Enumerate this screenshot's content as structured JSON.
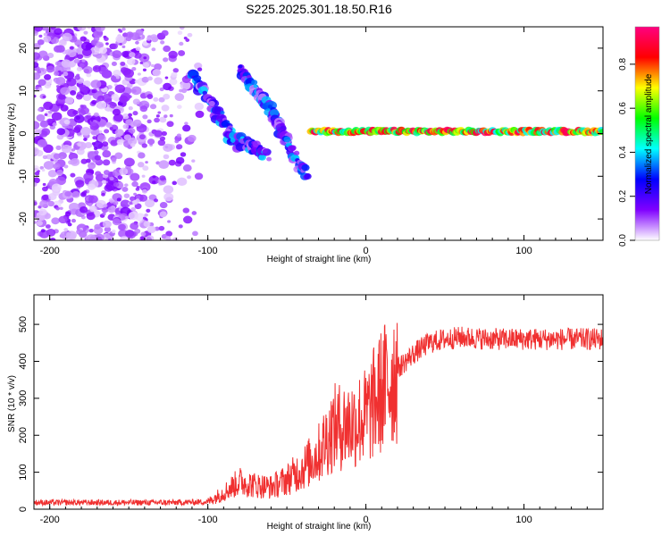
{
  "title": "S225.2025.301.18.50.R16",
  "chart_data": [
    {
      "type": "heatmap",
      "name": "spectrogram",
      "xlabel": "Height of straight line (km)",
      "ylabel": "Frequency (Hz)",
      "xlim": [
        -210,
        150
      ],
      "ylim": [
        -25,
        25
      ],
      "x_ticks": [
        -200,
        -100,
        0,
        100
      ],
      "y_ticks": [
        -20,
        -10,
        0,
        10,
        20
      ],
      "colorbar": {
        "label": "Normalized spectral amplitude",
        "range": [
          0,
          0.97
        ],
        "ticks": [
          0.0,
          0.2,
          0.4,
          0.6,
          0.8
        ],
        "colormap": [
          "#ffffff",
          "#8000ff",
          "#0000ff",
          "#00ffff",
          "#00ff00",
          "#ffff00",
          "#ff0000",
          "#ff0080"
        ]
      },
      "features": [
        {
          "region": "noise",
          "x_range": [
            -210,
            -100
          ],
          "freq_range": [
            -25,
            25
          ],
          "amplitude_range": [
            0.02,
            0.15
          ]
        },
        {
          "region": "streak_1",
          "x_start": -110,
          "x_end": -80,
          "freq_start": 14,
          "freq_end": -3
        },
        {
          "region": "streak_2",
          "x_start": -88,
          "x_end": -62,
          "freq_start": 0,
          "freq_end": -5
        },
        {
          "region": "streak_3",
          "x_start": -80,
          "x_end": -55,
          "freq_start": 15,
          "freq_end": 3
        },
        {
          "region": "streak_4",
          "x_start": -58,
          "x_end": -38,
          "freq_start": 4,
          "freq_end": -10
        },
        {
          "region": "carrier_line",
          "x_start": -35,
          "x_end": 150,
          "frequency": 0.5,
          "amplitude_range": [
            0.4,
            0.95
          ]
        }
      ]
    },
    {
      "type": "line",
      "name": "snr",
      "xlabel": "Height of straight line (km)",
      "ylabel": "SNR (10 * v/v)",
      "xlim": [
        -210,
        150
      ],
      "ylim": [
        0,
        580
      ],
      "x_ticks": [
        -200,
        -100,
        0,
        100
      ],
      "y_ticks": [
        0,
        100,
        200,
        300,
        400,
        500
      ],
      "color": "#f03030",
      "series": [
        {
          "name": "SNR",
          "x": [
            -210,
            -180,
            -150,
            -120,
            -100,
            -90,
            -80,
            -70,
            -60,
            -50,
            -40,
            -30,
            -25,
            -20,
            -10,
            0,
            10,
            20,
            30,
            40,
            50,
            60,
            80,
            100,
            120,
            150
          ],
          "values": [
            18,
            18,
            18,
            18,
            20,
            45,
            75,
            65,
            60,
            80,
            110,
            150,
            190,
            220,
            230,
            250,
            320,
            380,
            420,
            450,
            460,
            465,
            460,
            460,
            460,
            460
          ]
        }
      ]
    }
  ]
}
